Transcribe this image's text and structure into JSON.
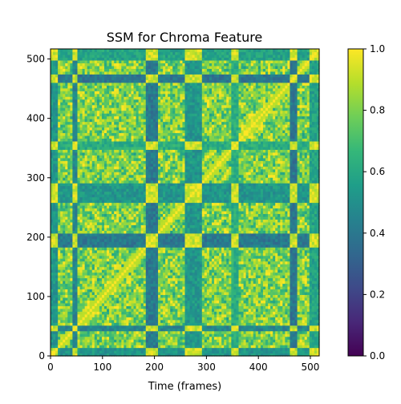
{
  "chart_data": {
    "type": "heatmap",
    "title": "SSM for Chroma Feature",
    "xlabel": "Time (frames)",
    "ylabel": "",
    "xlim": [
      0,
      517
    ],
    "ylim": [
      0,
      517
    ],
    "x_ticks": [
      0,
      100,
      200,
      300,
      400,
      500
    ],
    "y_ticks": [
      0,
      100,
      200,
      300,
      400,
      500
    ],
    "colormap": "viridis",
    "colorbar": {
      "range": [
        0.0,
        1.0
      ],
      "ticks": [
        "0.0",
        "0.2",
        "0.4",
        "0.6",
        "0.8",
        "1.0"
      ]
    },
    "matrix_description": "symmetric self-similarity matrix with bright diagonal",
    "diagonal_value": 1.0,
    "low_similarity_bands": [
      {
        "frames": [
          0,
          12
        ],
        "value": 0.45
      },
      {
        "frames": [
          40,
          52
        ],
        "value": 0.38
      },
      {
        "frames": [
          185,
          205
        ],
        "value": 0.33
      },
      {
        "frames": [
          258,
          290
        ],
        "value": 0.45
      },
      {
        "frames": [
          350,
          360
        ],
        "value": 0.55
      },
      {
        "frames": [
          462,
          475
        ],
        "value": 0.32
      },
      {
        "frames": [
          500,
          517
        ],
        "value": 0.5
      }
    ],
    "colors": {
      "viridis": [
        "#440154",
        "#482878",
        "#3e4a89",
        "#31688e",
        "#26828e",
        "#1f9e89",
        "#35b779",
        "#6ece58",
        "#b5de2b",
        "#fde725"
      ]
    }
  }
}
